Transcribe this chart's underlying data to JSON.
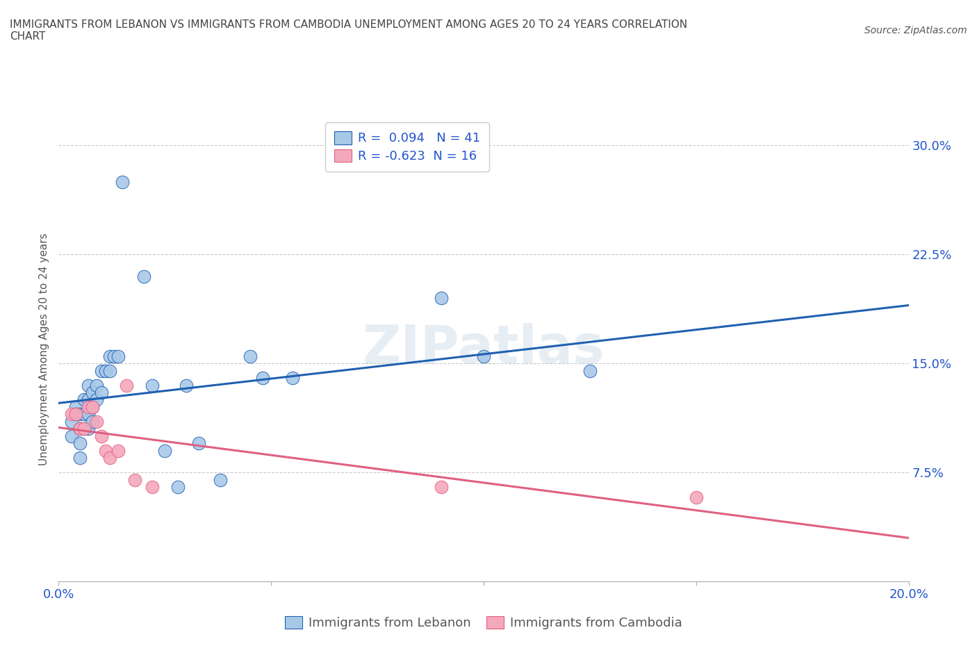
{
  "title": "IMMIGRANTS FROM LEBANON VS IMMIGRANTS FROM CAMBODIA UNEMPLOYMENT AMONG AGES 20 TO 24 YEARS CORRELATION\nCHART",
  "source": "Source: ZipAtlas.com",
  "ylabel": "Unemployment Among Ages 20 to 24 years",
  "xlim": [
    0.0,
    0.2
  ],
  "ylim": [
    0.0,
    0.32
  ],
  "yticks": [
    0.0,
    0.075,
    0.15,
    0.225,
    0.3
  ],
  "ytick_labels": [
    "",
    "7.5%",
    "15.0%",
    "22.5%",
    "30.0%"
  ],
  "xticks": [
    0.0,
    0.05,
    0.1,
    0.15,
    0.2
  ],
  "xtick_labels": [
    "0.0%",
    "",
    "",
    "",
    "20.0%"
  ],
  "watermark": "ZIPatlas",
  "lebanon_color": "#a8c8e8",
  "cambodia_color": "#f4a8bc",
  "lebanon_line_color": "#2060b0",
  "cambodia_line_color": "#e06080",
  "R_lebanon": 0.094,
  "N_lebanon": 41,
  "R_cambodia": -0.623,
  "N_cambodia": 16,
  "lebanon_x": [
    0.003,
    0.003,
    0.004,
    0.004,
    0.005,
    0.005,
    0.005,
    0.005,
    0.006,
    0.006,
    0.006,
    0.007,
    0.007,
    0.007,
    0.007,
    0.008,
    0.008,
    0.008,
    0.009,
    0.009,
    0.01,
    0.01,
    0.011,
    0.012,
    0.012,
    0.013,
    0.014,
    0.015,
    0.02,
    0.022,
    0.025,
    0.028,
    0.03,
    0.033,
    0.038,
    0.045,
    0.048,
    0.055,
    0.09,
    0.1,
    0.125
  ],
  "lebanon_y": [
    0.11,
    0.1,
    0.12,
    0.115,
    0.115,
    0.105,
    0.095,
    0.085,
    0.125,
    0.115,
    0.105,
    0.135,
    0.125,
    0.115,
    0.105,
    0.13,
    0.12,
    0.11,
    0.135,
    0.125,
    0.145,
    0.13,
    0.145,
    0.155,
    0.145,
    0.155,
    0.155,
    0.275,
    0.21,
    0.135,
    0.09,
    0.065,
    0.135,
    0.095,
    0.07,
    0.155,
    0.14,
    0.14,
    0.195,
    0.155,
    0.145
  ],
  "cambodia_x": [
    0.003,
    0.004,
    0.005,
    0.006,
    0.007,
    0.008,
    0.009,
    0.01,
    0.011,
    0.012,
    0.014,
    0.016,
    0.018,
    0.022,
    0.09,
    0.15
  ],
  "cambodia_y": [
    0.115,
    0.115,
    0.105,
    0.105,
    0.12,
    0.12,
    0.11,
    0.1,
    0.09,
    0.085,
    0.09,
    0.135,
    0.07,
    0.065,
    0.065,
    0.058
  ],
  "background_color": "#ffffff",
  "grid_color": "#bbbbbb",
  "title_color": "#444444",
  "axis_color": "#555555",
  "legend_label_color": "#2255cc"
}
